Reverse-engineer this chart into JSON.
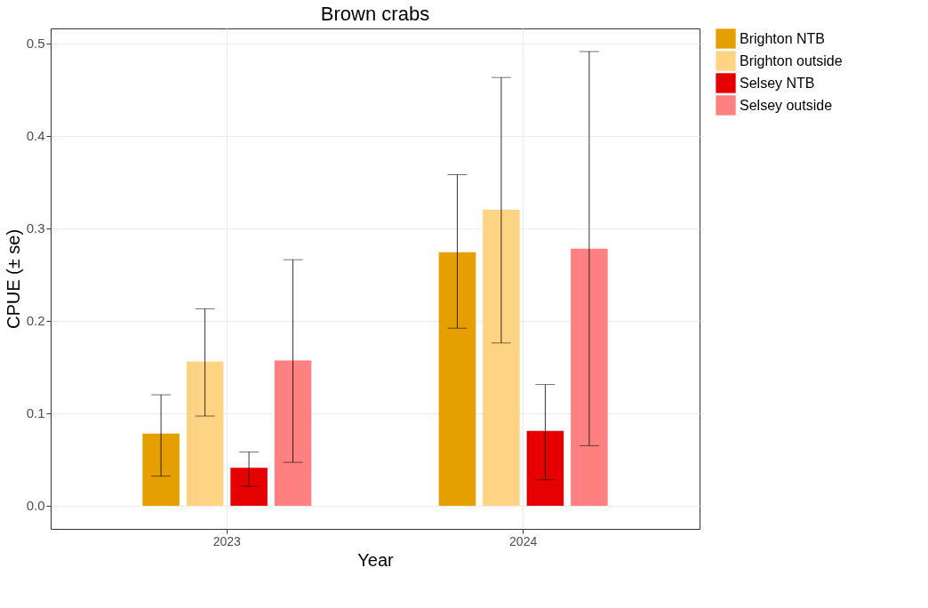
{
  "chart_data": {
    "type": "bar",
    "title": "Brown crabs",
    "xlabel": "Year",
    "ylabel": "CPUE (± se)",
    "categories": [
      "2023",
      "2024"
    ],
    "series": [
      {
        "name": "Brighton NTB",
        "color": "#e69f00",
        "values": [
          0.078,
          0.274
        ],
        "errors": [
          [
            0.032,
            0.12
          ],
          [
            0.192,
            0.358
          ]
        ]
      },
      {
        "name": "Brighton outside",
        "color": "#ffd384",
        "values": [
          0.156,
          0.32
        ],
        "errors": [
          [
            0.097,
            0.213
          ],
          [
            0.176,
            0.463
          ]
        ]
      },
      {
        "name": "Selsey NTB",
        "color": "#e60000",
        "values": [
          0.041,
          0.081
        ],
        "errors": [
          [
            0.021,
            0.058
          ],
          [
            0.028,
            0.131
          ]
        ]
      },
      {
        "name": "Selsey outside",
        "color": "#ff8080",
        "values": [
          0.157,
          0.278
        ],
        "errors": [
          [
            0.047,
            0.266
          ],
          [
            0.065,
            0.491
          ]
        ]
      }
    ],
    "ylim": [
      -0.025,
      0.516
    ],
    "yticks": [
      {
        "value": 0,
        "label": "0.0"
      },
      {
        "value": 0.1,
        "label": "0.1"
      },
      {
        "value": 0.2,
        "label": "0.2"
      },
      {
        "value": 0.3,
        "label": "0.3"
      },
      {
        "value": 0.4,
        "label": "0.4"
      },
      {
        "value": 0.5,
        "label": "0.5"
      }
    ],
    "grid": true,
    "legend": "right"
  }
}
